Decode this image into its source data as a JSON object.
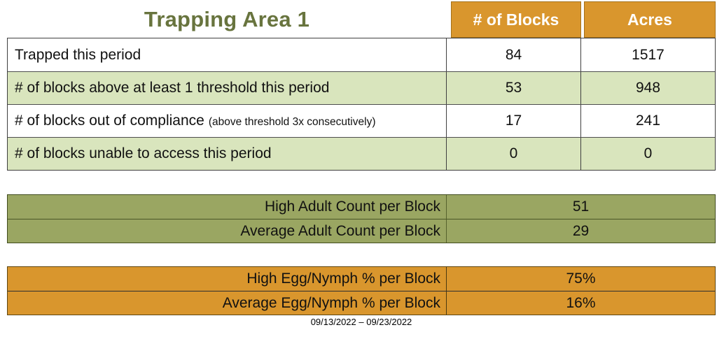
{
  "title": "Trapping Area 1",
  "colors": {
    "orange": "#D9962D",
    "olive_green": "#9AA662",
    "light_green": "#D9E5BD",
    "title_green": "#68743E",
    "header_text": "#FFFFFF"
  },
  "main_table": {
    "headers": {
      "blocks": "# of Blocks",
      "acres": "Acres"
    },
    "rows": [
      {
        "label": "Trapped this period",
        "note": "",
        "blocks": "84",
        "acres": "1517"
      },
      {
        "label": "# of blocks above at least 1 threshold this period",
        "note": "",
        "blocks": "53",
        "acres": "948"
      },
      {
        "label": "# of blocks out of compliance",
        "note": "(above threshold 3x consecutively)",
        "blocks": "17",
        "acres": "241"
      },
      {
        "label": "# of blocks unable to access this period",
        "note": "",
        "blocks": "0",
        "acres": "0"
      }
    ]
  },
  "adult_section": {
    "rows": [
      {
        "label": "High Adult Count per Block",
        "value": "51"
      },
      {
        "label": "Average Adult Count per Block",
        "value": "29"
      }
    ]
  },
  "egg_section": {
    "rows": [
      {
        "label": "High Egg/Nymph % per Block",
        "value": "75%"
      },
      {
        "label": "Average Egg/Nymph % per Block",
        "value": "16%"
      }
    ]
  },
  "footer": {
    "date_range": "09/13/2022 – 09/23/2022"
  }
}
